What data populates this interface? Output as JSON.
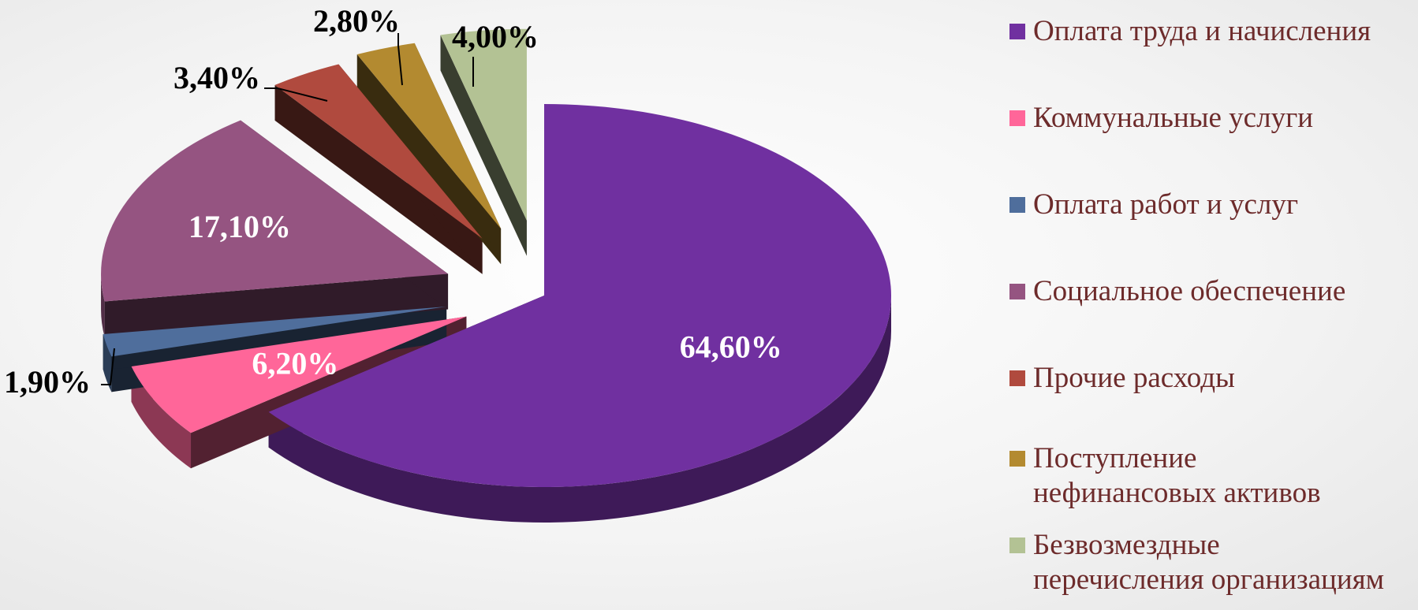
{
  "chart_data": {
    "type": "pie",
    "title": "",
    "legend_position": "right",
    "slices": [
      {
        "name": "Оплата труда и начисления",
        "value": 64.6,
        "label": "64,60%",
        "color": "#7030a0"
      },
      {
        "name": "Коммунальные услуги",
        "value": 6.2,
        "label": "6,20%",
        "color": "#ff6699"
      },
      {
        "name": "Оплата работ и услуг",
        "value": 1.9,
        "label": "1,90%",
        "color": "#4f6e9c"
      },
      {
        "name": "Социальное обеспечение",
        "value": 17.1,
        "label": "17,10%",
        "color": "#955481"
      },
      {
        "name": "Прочие расходы",
        "value": 3.4,
        "label": "3,40%",
        "color": "#b04a3e"
      },
      {
        "name": "Поступление нефинансовых активов",
        "value": 2.8,
        "label": "2,80%",
        "color": "#b38a30"
      },
      {
        "name": "Безвозмездные перечисления организациям",
        "value": 4.0,
        "label": "4,00%",
        "color": "#b3c294"
      }
    ]
  },
  "legend": {
    "items": [
      {
        "label": "Оплата труда и начисления",
        "color": "#7030a0"
      },
      {
        "label": "Коммунальные услуги",
        "color": "#ff6699"
      },
      {
        "label": "Оплата работ и услуг",
        "color": "#4f6e9c"
      },
      {
        "label": "Социальное обеспечение",
        "color": "#955481"
      },
      {
        "label": "Прочие расходы",
        "color": "#b04a3e"
      },
      {
        "label": "Поступление\nнефинансовых активов",
        "color": "#b38a30"
      },
      {
        "label": "Безвозмездные\nперечисления организациям",
        "color": "#b3c294"
      }
    ]
  }
}
